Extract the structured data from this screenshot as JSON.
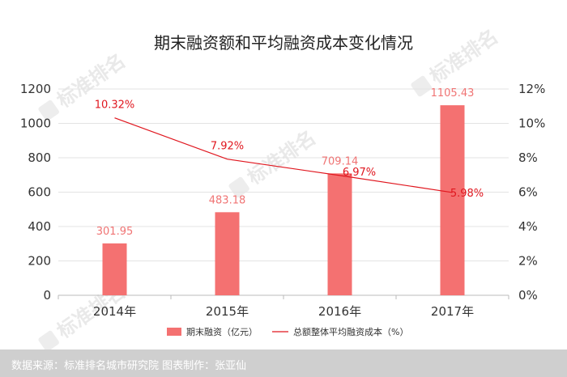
{
  "chart_data": {
    "type": "bar",
    "title": "期末融资额和平均融资成本变化情况",
    "categories": [
      "2014年",
      "2015年",
      "2016年",
      "2017年"
    ],
    "series": [
      {
        "name": "期末融资（亿元）",
        "type": "bar",
        "axis": "left",
        "values": [
          301.95,
          483.18,
          709.14,
          1105.43
        ],
        "labels": [
          "301.95",
          "483.18",
          "709.14",
          "1105.43"
        ]
      },
      {
        "name": "总额整体平均融资成本（%）",
        "type": "line",
        "axis": "right",
        "values": [
          10.32,
          7.92,
          6.97,
          5.98
        ],
        "labels": [
          "10.32%",
          "7.92%",
          "6.97%",
          "5.98%"
        ]
      }
    ],
    "ylim_left": [
      0,
      1200
    ],
    "yticks_left": [
      "0",
      "200",
      "400",
      "600",
      "800",
      "1000",
      "1200"
    ],
    "ylim_right": [
      0,
      12
    ],
    "yticks_right": [
      "0%",
      "2%",
      "4%",
      "6%",
      "8%",
      "10%",
      "12%"
    ],
    "grid": true,
    "legend_position": "bottom",
    "colors": {
      "bar": "#f47171",
      "line": "#e0161e",
      "grid": "#e3e3e3",
      "footer": "#cfcfcf"
    }
  },
  "footer": {
    "source": "数据来源：标准排名城市研究院  图表制作：张亚仙"
  },
  "watermark": {
    "text": "标准排名"
  }
}
